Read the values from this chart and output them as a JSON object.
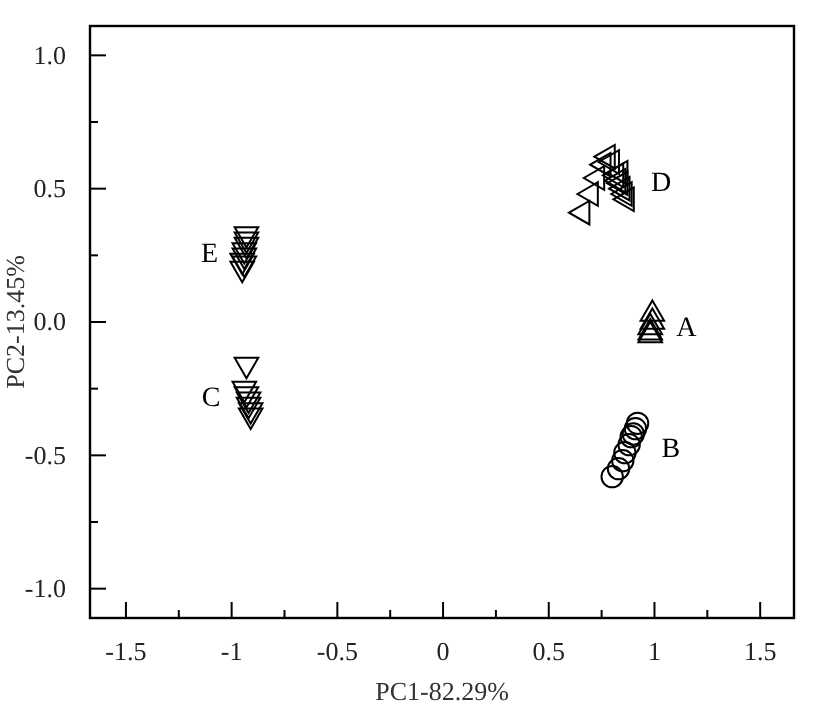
{
  "chart_data": {
    "type": "scatter",
    "xlabel": "PC1-82.29%",
    "ylabel": "PC2-13.45%",
    "xlim": [
      -1.67,
      1.66
    ],
    "ylim": [
      -1.11,
      1.11
    ],
    "xticks": [
      -1.5,
      {
        "value": -1.25,
        "label": null
      },
      -1.0,
      {
        "value": -0.75,
        "label": null
      },
      -0.5,
      {
        "value": -0.25,
        "label": null
      },
      0.0,
      {
        "value": 0.25,
        "label": null
      },
      0.5,
      {
        "value": 0.75,
        "label": null
      },
      1.0,
      {
        "value": 1.25,
        "label": null
      },
      1.5
    ],
    "yticks": [
      {
        "value": -1.0,
        "label": "-1.0"
      },
      {
        "value": -0.75,
        "label": null
      },
      -0.5,
      {
        "value": -0.25,
        "label": null
      },
      {
        "value": 0.0,
        "label": "0.0"
      },
      {
        "value": 0.25,
        "label": null
      },
      0.5,
      {
        "value": 0.75,
        "label": null
      },
      {
        "value": 1.0,
        "label": "1.0"
      }
    ],
    "grid": false,
    "legend": false,
    "series": [
      {
        "name": "A",
        "color": "#000000",
        "marker": "triangle",
        "x": [
          0.98,
          0.98,
          0.99,
          0.99,
          0.98
        ],
        "values": [
          -0.04,
          -0.02,
          0.0,
          0.03,
          -0.05
        ]
      },
      {
        "name": "B",
        "color": "#000000",
        "marker": "circle",
        "x": [
          0.8,
          0.83,
          0.85,
          0.86,
          0.88,
          0.89,
          0.91,
          0.92,
          0.9
        ],
        "values": [
          -0.58,
          -0.55,
          -0.52,
          -0.49,
          -0.46,
          -0.43,
          -0.4,
          -0.38,
          -0.42
        ]
      },
      {
        "name": "C",
        "color": "#000000",
        "marker": "triangle-down",
        "x": [
          -0.93,
          -0.94,
          -0.93,
          -0.92,
          -0.92,
          -0.91,
          -0.91
        ],
        "values": [
          -0.16,
          -0.25,
          -0.27,
          -0.29,
          -0.31,
          -0.33,
          -0.35
        ]
      },
      {
        "name": "D",
        "color": "#000000",
        "marker": "triangle-left",
        "x": [
          0.66,
          0.7,
          0.73,
          0.76,
          0.78,
          0.8,
          0.82,
          0.83,
          0.84,
          0.85,
          0.86,
          0.87,
          0.84
        ],
        "values": [
          0.41,
          0.48,
          0.54,
          0.59,
          0.62,
          0.6,
          0.55,
          0.53,
          0.52,
          0.5,
          0.48,
          0.46,
          0.56
        ]
      },
      {
        "name": "E",
        "color": "#000000",
        "marker": "triangle-down",
        "x": [
          -0.95,
          -0.95,
          -0.94,
          -0.94,
          -0.93,
          -0.93,
          -0.93,
          -0.94
        ],
        "values": [
          0.2,
          0.23,
          0.25,
          0.27,
          0.29,
          0.31,
          0.33,
          0.22
        ]
      }
    ]
  }
}
